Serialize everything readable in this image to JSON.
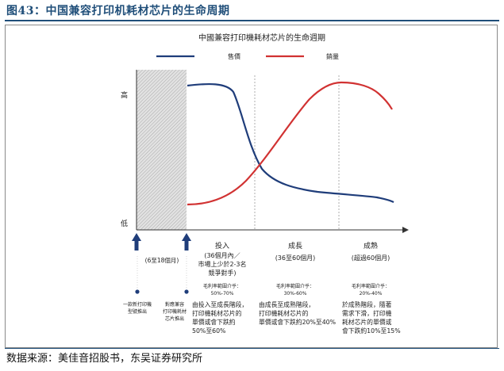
{
  "figure_title": "图43：中国兼容打印机耗材芯片的生命周期",
  "source": "数据来源：美佳音招股书，东吴证券研究所",
  "diagram": {
    "title": "中國兼容打印機耗材芯片的生命週期",
    "legend": [
      {
        "name": "售價",
        "color": "#1f3d7a"
      },
      {
        "name": "銷量",
        "color": "#d13232"
      }
    ],
    "y_high": "高",
    "y_low": "低",
    "left_labels": {
      "period": "(6至18個月)",
      "launch_printer": [
        "一款新打印機",
        "型號推出"
      ],
      "launch_chip": [
        "對應兼容",
        "打印機耗材",
        "芯片推出"
      ]
    },
    "stages": [
      {
        "name": "投入",
        "period": [
          "(36個月內／",
          "市場上少於2-3名",
          "競爭對手)"
        ],
        "margin_label": "毛利率範圍介乎：",
        "margin": "50%-70%",
        "desc": [
          "由投入至成長階段，",
          "打印機耗材芯片的",
          "單價或會下跌約",
          "50%至60%"
        ]
      },
      {
        "name": "成長",
        "period": [
          "(36至60個月)"
        ],
        "margin_label": "毛利率範圍介乎：",
        "margin": "30%-60%",
        "desc": [
          "由成長至成熟階段，",
          "打印機耗材芯片的",
          "單價或會下跌約20%至40%"
        ]
      },
      {
        "name": "成熟",
        "period": [
          "(超過60個月)"
        ],
        "margin_label": "毛利率範圍介乎：",
        "margin": "20%-40%",
        "desc": [
          "於成熟階段，隨著",
          "需求下滑，打印機",
          "耗材芯片的單價或",
          "會下跌約10%至15%"
        ]
      }
    ]
  }
}
